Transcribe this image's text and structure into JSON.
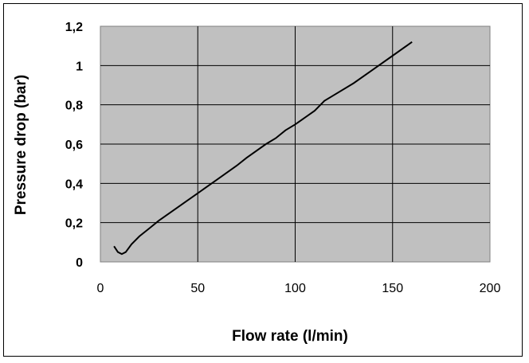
{
  "chart_data": {
    "type": "line",
    "title": "",
    "xlabel": "Flow rate (l/min)",
    "ylabel": "Pressure drop (bar)",
    "xlim": [
      0,
      200
    ],
    "ylim": [
      0,
      1.2
    ],
    "x_ticks": [
      0,
      50,
      100,
      150,
      200
    ],
    "y_ticks": [
      0,
      0.2,
      0.4,
      0.6,
      0.8,
      1.0,
      1.2
    ],
    "x_tick_labels": [
      "0",
      "50",
      "100",
      "150",
      "200"
    ],
    "y_tick_labels": [
      "0",
      "0,2",
      "0,4",
      "0,6",
      "0,8",
      "1",
      "1,2"
    ],
    "grid": true,
    "legend": "none",
    "plot_background": "#c0c0c0",
    "line_color": "#000000",
    "series": [
      {
        "x": [
          7,
          9,
          11,
          13,
          16,
          20,
          25,
          30,
          40,
          50,
          60,
          70,
          75,
          85,
          90,
          95,
          100,
          110,
          115,
          120,
          130,
          140,
          150,
          160
        ],
        "y": [
          0.08,
          0.05,
          0.04,
          0.05,
          0.09,
          0.13,
          0.17,
          0.21,
          0.28,
          0.35,
          0.42,
          0.49,
          0.53,
          0.6,
          0.63,
          0.67,
          0.7,
          0.77,
          0.82,
          0.85,
          0.91,
          0.98,
          1.05,
          1.12
        ]
      }
    ]
  }
}
